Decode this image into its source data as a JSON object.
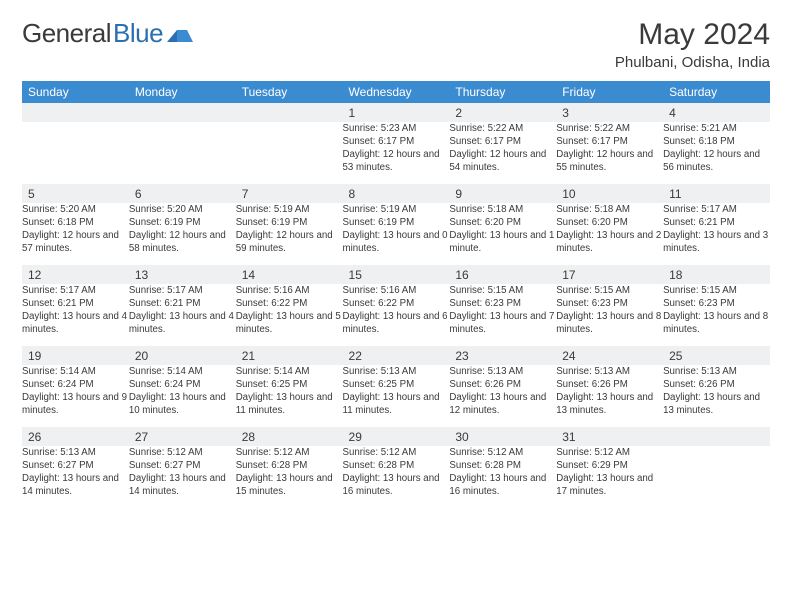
{
  "logo": {
    "part1": "General",
    "part2": "Blue"
  },
  "title": "May 2024",
  "location": "Phulbani, Odisha, India",
  "colors": {
    "header_bg": "#3b8bd1",
    "header_text": "#ffffff",
    "daynum_bg": "#eef0f2",
    "daynum_border": "#9fb8cf",
    "text": "#3a3a3a",
    "logo_blue": "#2b6fb0"
  },
  "dayHeaders": [
    "Sunday",
    "Monday",
    "Tuesday",
    "Wednesday",
    "Thursday",
    "Friday",
    "Saturday"
  ],
  "weeks": [
    [
      null,
      null,
      null,
      {
        "n": "1",
        "sr": "5:23 AM",
        "ss": "6:17 PM",
        "dl": "12 hours and 53 minutes."
      },
      {
        "n": "2",
        "sr": "5:22 AM",
        "ss": "6:17 PM",
        "dl": "12 hours and 54 minutes."
      },
      {
        "n": "3",
        "sr": "5:22 AM",
        "ss": "6:17 PM",
        "dl": "12 hours and 55 minutes."
      },
      {
        "n": "4",
        "sr": "5:21 AM",
        "ss": "6:18 PM",
        "dl": "12 hours and 56 minutes."
      }
    ],
    [
      {
        "n": "5",
        "sr": "5:20 AM",
        "ss": "6:18 PM",
        "dl": "12 hours and 57 minutes."
      },
      {
        "n": "6",
        "sr": "5:20 AM",
        "ss": "6:19 PM",
        "dl": "12 hours and 58 minutes."
      },
      {
        "n": "7",
        "sr": "5:19 AM",
        "ss": "6:19 PM",
        "dl": "12 hours and 59 minutes."
      },
      {
        "n": "8",
        "sr": "5:19 AM",
        "ss": "6:19 PM",
        "dl": "13 hours and 0 minutes."
      },
      {
        "n": "9",
        "sr": "5:18 AM",
        "ss": "6:20 PM",
        "dl": "13 hours and 1 minute."
      },
      {
        "n": "10",
        "sr": "5:18 AM",
        "ss": "6:20 PM",
        "dl": "13 hours and 2 minutes."
      },
      {
        "n": "11",
        "sr": "5:17 AM",
        "ss": "6:21 PM",
        "dl": "13 hours and 3 minutes."
      }
    ],
    [
      {
        "n": "12",
        "sr": "5:17 AM",
        "ss": "6:21 PM",
        "dl": "13 hours and 4 minutes."
      },
      {
        "n": "13",
        "sr": "5:17 AM",
        "ss": "6:21 PM",
        "dl": "13 hours and 4 minutes."
      },
      {
        "n": "14",
        "sr": "5:16 AM",
        "ss": "6:22 PM",
        "dl": "13 hours and 5 minutes."
      },
      {
        "n": "15",
        "sr": "5:16 AM",
        "ss": "6:22 PM",
        "dl": "13 hours and 6 minutes."
      },
      {
        "n": "16",
        "sr": "5:15 AM",
        "ss": "6:23 PM",
        "dl": "13 hours and 7 minutes."
      },
      {
        "n": "17",
        "sr": "5:15 AM",
        "ss": "6:23 PM",
        "dl": "13 hours and 8 minutes."
      },
      {
        "n": "18",
        "sr": "5:15 AM",
        "ss": "6:23 PM",
        "dl": "13 hours and 8 minutes."
      }
    ],
    [
      {
        "n": "19",
        "sr": "5:14 AM",
        "ss": "6:24 PM",
        "dl": "13 hours and 9 minutes."
      },
      {
        "n": "20",
        "sr": "5:14 AM",
        "ss": "6:24 PM",
        "dl": "13 hours and 10 minutes."
      },
      {
        "n": "21",
        "sr": "5:14 AM",
        "ss": "6:25 PM",
        "dl": "13 hours and 11 minutes."
      },
      {
        "n": "22",
        "sr": "5:13 AM",
        "ss": "6:25 PM",
        "dl": "13 hours and 11 minutes."
      },
      {
        "n": "23",
        "sr": "5:13 AM",
        "ss": "6:26 PM",
        "dl": "13 hours and 12 minutes."
      },
      {
        "n": "24",
        "sr": "5:13 AM",
        "ss": "6:26 PM",
        "dl": "13 hours and 13 minutes."
      },
      {
        "n": "25",
        "sr": "5:13 AM",
        "ss": "6:26 PM",
        "dl": "13 hours and 13 minutes."
      }
    ],
    [
      {
        "n": "26",
        "sr": "5:13 AM",
        "ss": "6:27 PM",
        "dl": "13 hours and 14 minutes."
      },
      {
        "n": "27",
        "sr": "5:12 AM",
        "ss": "6:27 PM",
        "dl": "13 hours and 14 minutes."
      },
      {
        "n": "28",
        "sr": "5:12 AM",
        "ss": "6:28 PM",
        "dl": "13 hours and 15 minutes."
      },
      {
        "n": "29",
        "sr": "5:12 AM",
        "ss": "6:28 PM",
        "dl": "13 hours and 16 minutes."
      },
      {
        "n": "30",
        "sr": "5:12 AM",
        "ss": "6:28 PM",
        "dl": "13 hours and 16 minutes."
      },
      {
        "n": "31",
        "sr": "5:12 AM",
        "ss": "6:29 PM",
        "dl": "13 hours and 17 minutes."
      },
      null
    ]
  ],
  "labels": {
    "sunrise": "Sunrise: ",
    "sunset": "Sunset: ",
    "daylight": "Daylight: "
  }
}
